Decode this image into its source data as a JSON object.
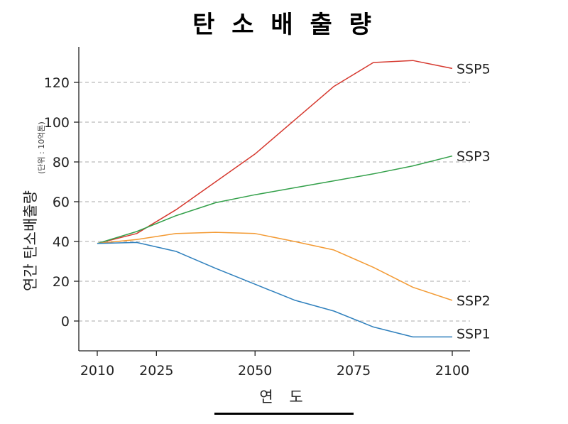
{
  "chart_data": {
    "type": "line",
    "title": "탄 소 배 출 량",
    "xlabel": "연 도",
    "ylabel": "연간 탄소배출량",
    "ylabel_unit": "(단위 : 10억톤)",
    "x": [
      2010,
      2020,
      2030,
      2040,
      2050,
      2060,
      2070,
      2080,
      2090,
      2100
    ],
    "xticks": [
      2010,
      2025,
      2050,
      2075,
      2100
    ],
    "yticks": [
      0,
      20,
      40,
      60,
      80,
      100,
      120
    ],
    "xlim": [
      2010,
      2100
    ],
    "ylim": [
      -15,
      138
    ],
    "grid": "horizontal-dashed",
    "legend": "direct-labels-right",
    "series": [
      {
        "name": "SSP5",
        "color": "#d6392f",
        "values": [
          39,
          44,
          56,
          70,
          84,
          101,
          118,
          130,
          131,
          127
        ]
      },
      {
        "name": "SSP3",
        "color": "#33a04a",
        "values": [
          39,
          45,
          53,
          59.5,
          63.5,
          67,
          70.5,
          74,
          78,
          83
        ]
      },
      {
        "name": "SSP2",
        "color": "#f39a33",
        "values": [
          39,
          41,
          44,
          44.6,
          44,
          40,
          35.7,
          27,
          17,
          10.4
        ]
      },
      {
        "name": "SSP1",
        "color": "#2f80bd",
        "values": [
          39,
          39.5,
          35,
          26.5,
          18.5,
          10.5,
          5,
          -3,
          -8,
          -8
        ]
      }
    ]
  }
}
